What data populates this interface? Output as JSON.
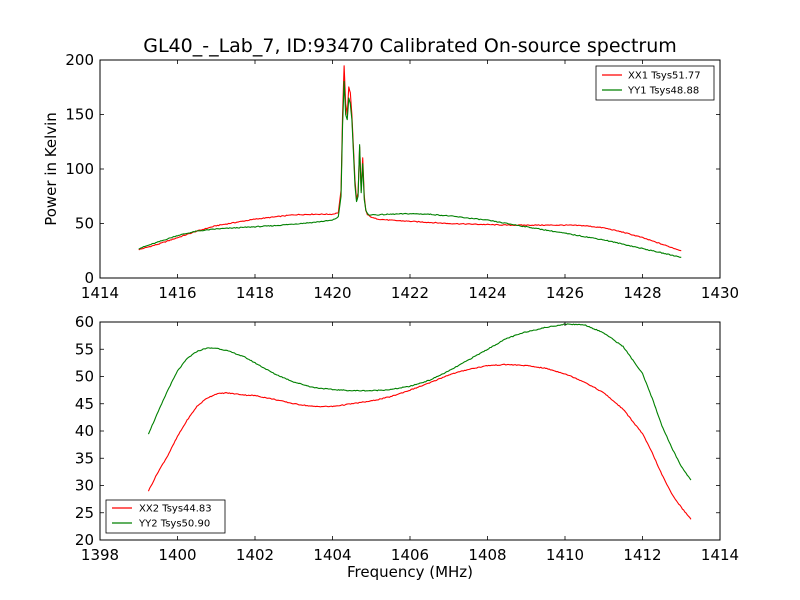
{
  "figure": {
    "title": "GL40_-_Lab_7, ID:93470 Calibrated On-source spectrum"
  },
  "colors": {
    "red": "#ff0000",
    "green": "#008000",
    "axes": "#000000",
    "background": "#ffffff"
  },
  "chart_data": [
    {
      "type": "line",
      "title": "GL40_-_Lab_7, ID:93470 Calibrated On-source spectrum",
      "xlabel": "",
      "ylabel": "Power in Kelvin",
      "xlim": [
        1414,
        1430
      ],
      "ylim": [
        0,
        200
      ],
      "xticks": [
        1414,
        1416,
        1418,
        1420,
        1422,
        1424,
        1426,
        1428,
        1430
      ],
      "yticks": [
        0,
        50,
        100,
        150,
        200
      ],
      "grid": false,
      "legend": "top-right",
      "series": [
        {
          "name": "XX1 Tsys51.77",
          "color": "#ff0000",
          "x": [
            1415.0,
            1415.5,
            1416.0,
            1416.5,
            1417.0,
            1417.5,
            1418.0,
            1418.5,
            1419.0,
            1419.5,
            1420.0,
            1420.15,
            1420.22,
            1420.26,
            1420.3,
            1420.34,
            1420.38,
            1420.42,
            1420.46,
            1420.5,
            1420.54,
            1420.58,
            1420.62,
            1420.66,
            1420.7,
            1420.74,
            1420.78,
            1420.82,
            1420.86,
            1420.9,
            1420.95,
            1421.05,
            1421.2,
            1421.5,
            1422.0,
            1422.5,
            1423.0,
            1423.5,
            1424.0,
            1424.5,
            1425.0,
            1425.5,
            1426.0,
            1426.5,
            1427.0,
            1427.5,
            1428.0,
            1428.5,
            1429.0
          ],
          "y": [
            26,
            31,
            37,
            43,
            48,
            51,
            54,
            56,
            58,
            58.5,
            58.5,
            60,
            80,
            150,
            195,
            160,
            150,
            175,
            170,
            150,
            120,
            90,
            72,
            78,
            120,
            80,
            110,
            75,
            62,
            58,
            57,
            55,
            54,
            53,
            52,
            51,
            50,
            49.5,
            49,
            48.5,
            48.5,
            48.5,
            48.5,
            48,
            46,
            42,
            37,
            31,
            25
          ]
        },
        {
          "name": "YY1 Tsys48.88",
          "color": "#008000",
          "x": [
            1415.0,
            1415.5,
            1416.0,
            1416.5,
            1417.0,
            1417.5,
            1418.0,
            1418.5,
            1419.0,
            1419.5,
            1420.0,
            1420.15,
            1420.22,
            1420.26,
            1420.3,
            1420.34,
            1420.38,
            1420.42,
            1420.46,
            1420.5,
            1420.54,
            1420.58,
            1420.62,
            1420.66,
            1420.7,
            1420.74,
            1420.78,
            1420.82,
            1420.86,
            1420.9,
            1420.95,
            1421.05,
            1421.2,
            1421.5,
            1422.0,
            1422.5,
            1423.0,
            1423.5,
            1424.0,
            1424.5,
            1425.0,
            1425.5,
            1426.0,
            1426.5,
            1427.0,
            1427.5,
            1428.0,
            1428.5,
            1429.0
          ],
          "y": [
            27,
            33,
            39,
            43,
            45,
            46,
            47,
            48,
            49.5,
            51,
            53,
            56,
            75,
            140,
            180,
            150,
            145,
            165,
            160,
            145,
            115,
            85,
            70,
            75,
            122,
            78,
            105,
            72,
            62,
            59,
            58,
            58,
            58,
            58.5,
            59,
            58.5,
            57,
            55,
            53,
            50,
            47,
            44,
            41,
            38,
            35,
            31,
            27,
            23,
            19
          ]
        }
      ]
    },
    {
      "type": "line",
      "title": "",
      "xlabel": "Frequency (MHz)",
      "ylabel": "",
      "xlim": [
        1398,
        1414
      ],
      "ylim": [
        20,
        60
      ],
      "xticks": [
        1398,
        1400,
        1402,
        1404,
        1406,
        1408,
        1410,
        1412,
        1414
      ],
      "yticks": [
        20,
        25,
        30,
        35,
        40,
        45,
        50,
        55,
        60
      ],
      "grid": false,
      "legend": "bottom-left",
      "series": [
        {
          "name": "XX2 Tsys44.83",
          "color": "#ff0000",
          "x": [
            1399.25,
            1399.5,
            1399.75,
            1400.0,
            1400.25,
            1400.5,
            1400.75,
            1401.0,
            1401.25,
            1401.5,
            1401.75,
            1402.0,
            1402.5,
            1403.0,
            1403.5,
            1404.0,
            1404.5,
            1405.0,
            1405.5,
            1406.0,
            1406.5,
            1407.0,
            1407.5,
            1408.0,
            1408.5,
            1409.0,
            1409.5,
            1410.0,
            1410.5,
            1411.0,
            1411.5,
            1412.0,
            1412.25,
            1412.5,
            1412.75,
            1413.0,
            1413.25
          ],
          "y": [
            29,
            32.5,
            35.5,
            39,
            42,
            44.5,
            46,
            46.8,
            47,
            46.8,
            46.6,
            46.5,
            45.8,
            45,
            44.5,
            44.5,
            45,
            45.5,
            46.3,
            47.5,
            48.8,
            50.3,
            51.3,
            52,
            52.2,
            52,
            51.5,
            50.5,
            49,
            47,
            44,
            39.5,
            36,
            32,
            28.5,
            26,
            23.8
          ]
        },
        {
          "name": "YY2 Tsys50.90",
          "color": "#008000",
          "x": [
            1399.25,
            1399.5,
            1399.75,
            1400.0,
            1400.25,
            1400.5,
            1400.75,
            1401.0,
            1401.25,
            1401.5,
            1401.75,
            1402.0,
            1402.5,
            1403.0,
            1403.5,
            1404.0,
            1404.5,
            1405.0,
            1405.5,
            1406.0,
            1406.5,
            1407.0,
            1407.5,
            1408.0,
            1408.5,
            1409.0,
            1409.5,
            1410.0,
            1410.5,
            1411.0,
            1411.5,
            1412.0,
            1412.25,
            1412.5,
            1412.75,
            1413.0,
            1413.25
          ],
          "y": [
            39.5,
            43.5,
            47.5,
            51,
            53.3,
            54.6,
            55.2,
            55.2,
            54.8,
            54.2,
            53.5,
            52.5,
            50.5,
            49,
            48,
            47.6,
            47.4,
            47.4,
            47.6,
            48.2,
            49.3,
            51,
            53,
            55,
            57,
            58.2,
            59,
            59.6,
            59.5,
            58,
            55.5,
            50.5,
            46,
            41,
            37,
            33.5,
            31
          ]
        }
      ]
    }
  ]
}
